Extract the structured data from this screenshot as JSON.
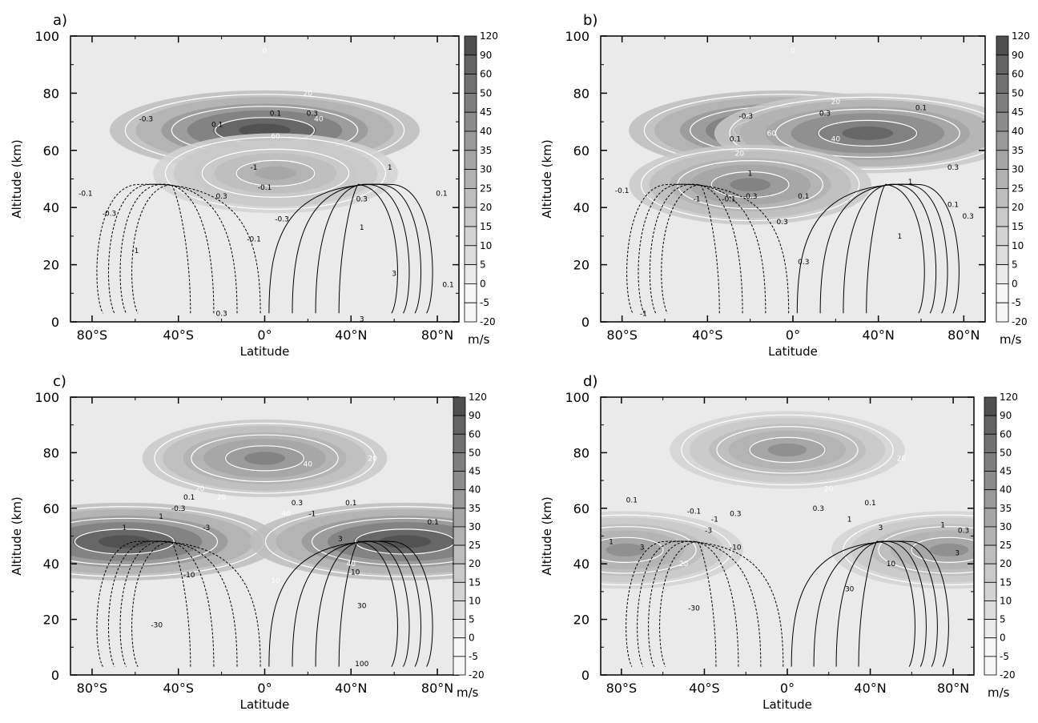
{
  "colors": {
    "frame": "#000000",
    "contour_white": "#ffffff",
    "contour_black": "#000000",
    "shade_scale": [
      "#f7f7f7",
      "#eaeaea",
      "#dddddd",
      "#d3d3d3",
      "#c9c9c9",
      "#bdbdbd",
      "#b1b1b1",
      "#a5a5a5",
      "#999999",
      "#8c8c8c",
      "#7f7f7f",
      "#717171",
      "#636363",
      "#4f4f4f"
    ]
  },
  "colorbar": {
    "levels": [
      "120",
      "90",
      "60",
      "50",
      "45",
      "40",
      "35",
      "30",
      "25",
      "20",
      "15",
      "10",
      "5",
      "0",
      "-5",
      "-20"
    ],
    "unit": "m/s"
  },
  "chart_data": [
    {
      "panel": "a)",
      "type": "contour",
      "xlabel": "Latitude",
      "ylabel": "Altitude (km)",
      "xlim": [
        -90,
        90
      ],
      "ylim": [
        0,
        100
      ],
      "x_ticks": [
        "80°S",
        "40°S",
        "0°",
        "40°N",
        "80°N"
      ],
      "y_ticks": [
        "0",
        "20",
        "40",
        "60",
        "80",
        "100"
      ],
      "jets": [
        {
          "lat": 0,
          "alt": 67,
          "peak": 60
        },
        {
          "lat": 5,
          "alt": 52,
          "peak": 25
        }
      ],
      "white_contour_labels": [
        {
          "text": "0",
          "lat": 0,
          "alt": 95
        },
        {
          "text": "20",
          "lat": 20,
          "alt": 80
        },
        {
          "text": "40",
          "lat": 25,
          "alt": 71
        },
        {
          "text": "60",
          "lat": 5,
          "alt": 65
        }
      ],
      "black_contour_labels": [
        {
          "text": "-0.3",
          "lat": -55,
          "alt": 71
        },
        {
          "text": "0.1",
          "lat": -22,
          "alt": 69
        },
        {
          "text": "0.1",
          "lat": 5,
          "alt": 73
        },
        {
          "text": "0.3",
          "lat": 22,
          "alt": 73
        },
        {
          "text": "-1",
          "lat": -5,
          "alt": 54
        },
        {
          "text": "1",
          "lat": 58,
          "alt": 54
        },
        {
          "text": "-0.1",
          "lat": -83,
          "alt": 45
        },
        {
          "text": "-0.3",
          "lat": -72,
          "alt": 38
        },
        {
          "text": "-0.1",
          "lat": 0,
          "alt": 47
        },
        {
          "text": "0.3",
          "lat": -20,
          "alt": 44
        },
        {
          "text": "0.3",
          "lat": 45,
          "alt": 43
        },
        {
          "text": "0.1",
          "lat": 82,
          "alt": 45
        },
        {
          "text": "-0.3",
          "lat": 8,
          "alt": 36
        },
        {
          "text": "-1",
          "lat": -60,
          "alt": 25
        },
        {
          "text": "1",
          "lat": 45,
          "alt": 33
        },
        {
          "text": "-0.1",
          "lat": -5,
          "alt": 29
        },
        {
          "text": "3",
          "lat": 60,
          "alt": 17
        },
        {
          "text": "0.1",
          "lat": 85,
          "alt": 13
        },
        {
          "text": "0.3",
          "lat": -20,
          "alt": 3
        },
        {
          "text": "3",
          "lat": 45,
          "alt": 1
        }
      ]
    },
    {
      "panel": "b)",
      "type": "contour",
      "xlabel": "Latitude",
      "ylabel": "Altitude (km)",
      "xlim": [
        -90,
        90
      ],
      "ylim": [
        0,
        100
      ],
      "x_ticks": [
        "80°S",
        "40°S",
        "0°",
        "40°N",
        "80°N"
      ],
      "y_ticks": [
        "0",
        "20",
        "40",
        "60",
        "80",
        "100"
      ],
      "jets": [
        {
          "lat": -5,
          "alt": 67,
          "peak": 60
        },
        {
          "lat": 35,
          "alt": 66,
          "peak": 50
        },
        {
          "lat": -20,
          "alt": 48,
          "peak": 40
        }
      ],
      "white_contour_labels": [
        {
          "text": "0",
          "lat": 0,
          "alt": 95
        },
        {
          "text": "20",
          "lat": 20,
          "alt": 77
        },
        {
          "text": "40",
          "lat": 20,
          "alt": 64
        },
        {
          "text": "60",
          "lat": -10,
          "alt": 66
        },
        {
          "text": "20",
          "lat": -25,
          "alt": 59
        }
      ],
      "black_contour_labels": [
        {
          "text": "-0.3",
          "lat": -22,
          "alt": 72
        },
        {
          "text": "0.3",
          "lat": 15,
          "alt": 73
        },
        {
          "text": "0.1",
          "lat": 60,
          "alt": 75
        },
        {
          "text": "0.1",
          "lat": -27,
          "alt": 64
        },
        {
          "text": "1",
          "lat": -20,
          "alt": 52
        },
        {
          "text": "1",
          "lat": 55,
          "alt": 49
        },
        {
          "text": "0.3",
          "lat": 75,
          "alt": 54
        },
        {
          "text": "-0.1",
          "lat": -80,
          "alt": 46
        },
        {
          "text": "-0.3",
          "lat": -20,
          "alt": 44
        },
        {
          "text": "0.1",
          "lat": 5,
          "alt": 44
        },
        {
          "text": "0.3",
          "lat": -5,
          "alt": 35
        },
        {
          "text": "-1",
          "lat": -45,
          "alt": 43
        },
        {
          "text": "-0.1",
          "lat": -30,
          "alt": 43
        },
        {
          "text": "0.1",
          "lat": 75,
          "alt": 41
        },
        {
          "text": "0.3",
          "lat": 82,
          "alt": 37
        },
        {
          "text": "1",
          "lat": 50,
          "alt": 30
        },
        {
          "text": "0.3",
          "lat": 5,
          "alt": 21
        },
        {
          "text": "-1",
          "lat": -70,
          "alt": 3
        }
      ]
    },
    {
      "panel": "c)",
      "type": "contour",
      "xlabel": "Latitude",
      "ylabel": "Altitude (km)",
      "xlim": [
        -90,
        90
      ],
      "ylim": [
        0,
        100
      ],
      "x_ticks": [
        "80°S",
        "40°S",
        "0°",
        "40°N",
        "80°N"
      ],
      "y_ticks": [
        "0",
        "20",
        "40",
        "60",
        "80",
        "100"
      ],
      "jets": [
        {
          "lat": -65,
          "alt": 48,
          "peak": 60
        },
        {
          "lat": 65,
          "alt": 48,
          "peak": 60
        },
        {
          "lat": 0,
          "alt": 78,
          "peak": 40
        }
      ],
      "white_contour_labels": [
        {
          "text": "20",
          "lat": 50,
          "alt": 78
        },
        {
          "text": "40",
          "lat": 20,
          "alt": 76
        },
        {
          "text": "20",
          "lat": -30,
          "alt": 67
        },
        {
          "text": "20",
          "lat": -20,
          "alt": 64
        },
        {
          "text": "40",
          "lat": 10,
          "alt": 58
        },
        {
          "text": "40",
          "lat": 40,
          "alt": 40
        },
        {
          "text": "10",
          "lat": 5,
          "alt": 34
        }
      ],
      "black_contour_labels": [
        {
          "text": "0.1",
          "lat": -35,
          "alt": 64
        },
        {
          "text": "-0.3",
          "lat": -40,
          "alt": 60
        },
        {
          "text": "1",
          "lat": -48,
          "alt": 57
        },
        {
          "text": "-3",
          "lat": -27,
          "alt": 53
        },
        {
          "text": "0.3",
          "lat": 15,
          "alt": 62
        },
        {
          "text": "0.1",
          "lat": 40,
          "alt": 62
        },
        {
          "text": "-1",
          "lat": 22,
          "alt": 58
        },
        {
          "text": "3",
          "lat": 35,
          "alt": 49
        },
        {
          "text": "1",
          "lat": -65,
          "alt": 53
        },
        {
          "text": "-10",
          "lat": -35,
          "alt": 36
        },
        {
          "text": "10",
          "lat": 42,
          "alt": 37
        },
        {
          "text": "-30",
          "lat": -50,
          "alt": 18
        },
        {
          "text": "30",
          "lat": 45,
          "alt": 25
        },
        {
          "text": "100",
          "lat": 45,
          "alt": 4
        },
        {
          "text": "0.1",
          "lat": 78,
          "alt": 55
        }
      ]
    },
    {
      "panel": "d)",
      "type": "contour",
      "xlabel": "Latitude",
      "ylabel": "Altitude (km)",
      "xlim": [
        -90,
        90
      ],
      "ylim": [
        0,
        100
      ],
      "x_ticks": [
        "80°S",
        "40°S",
        "0°",
        "40°N",
        "80°N"
      ],
      "y_ticks": [
        "0",
        "20",
        "40",
        "60",
        "80",
        "100"
      ],
      "jets": [
        {
          "lat": 0,
          "alt": 81,
          "peak": 35
        },
        {
          "lat": -78,
          "alt": 45,
          "peak": 35
        },
        {
          "lat": 78,
          "alt": 45,
          "peak": 35
        }
      ],
      "white_contour_labels": [
        {
          "text": "20",
          "lat": 55,
          "alt": 78
        },
        {
          "text": "20",
          "lat": 20,
          "alt": 67
        },
        {
          "text": "20",
          "lat": -50,
          "alt": 40
        }
      ],
      "black_contour_labels": [
        {
          "text": "0.1",
          "lat": -75,
          "alt": 63
        },
        {
          "text": "0.1",
          "lat": 40,
          "alt": 62
        },
        {
          "text": "-0.1",
          "lat": -45,
          "alt": 59
        },
        {
          "text": "0.3",
          "lat": -25,
          "alt": 58
        },
        {
          "text": "0.3",
          "lat": 15,
          "alt": 60
        },
        {
          "text": "-1",
          "lat": -35,
          "alt": 56
        },
        {
          "text": "1",
          "lat": 30,
          "alt": 56
        },
        {
          "text": "-3",
          "lat": -38,
          "alt": 52
        },
        {
          "text": "3",
          "lat": 45,
          "alt": 53
        },
        {
          "text": "-10",
          "lat": -25,
          "alt": 46
        },
        {
          "text": "10",
          "lat": 50,
          "alt": 40
        },
        {
          "text": "1",
          "lat": -85,
          "alt": 48
        },
        {
          "text": "3",
          "lat": -70,
          "alt": 46
        },
        {
          "text": "1",
          "lat": 75,
          "alt": 54
        },
        {
          "text": "0.3",
          "lat": 85,
          "alt": 52
        },
        {
          "text": "3",
          "lat": 82,
          "alt": 44
        },
        {
          "text": "-30",
          "lat": -45,
          "alt": 24
        },
        {
          "text": "30",
          "lat": 30,
          "alt": 31
        }
      ]
    }
  ]
}
